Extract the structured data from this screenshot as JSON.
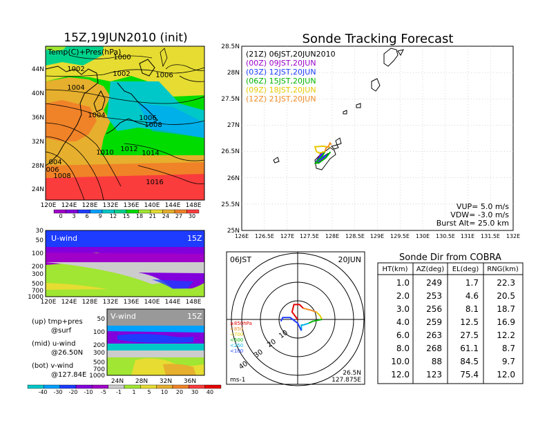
{
  "left_panel": {
    "title": "15Z,19JUN2010 (init)",
    "map": {
      "label": "Temp(C)+Pres(hPa)",
      "lat_ticks": [
        "44N",
        "40N",
        "36N",
        "32N",
        "28N",
        "24N"
      ],
      "lon_ticks": [
        "120E",
        "124E",
        "128E",
        "132E",
        "136E",
        "140E",
        "144E",
        "148E"
      ],
      "isobar_labels": [
        "1000",
        "1002",
        "1002",
        "1004",
        "1004",
        "1006",
        "1006",
        "1008",
        "1008",
        "1010",
        "1012",
        "1014",
        "1016",
        "004",
        "006",
        "1008"
      ],
      "colorbar_labels": [
        "0",
        "3",
        "6",
        "9",
        "12",
        "15",
        "18",
        "21",
        "24",
        "27",
        "30"
      ]
    },
    "u_wind": {
      "label": "U-wind",
      "time": "15Z",
      "pressure_ticks": [
        "30",
        "50",
        "100",
        "200",
        "300",
        "500",
        "700",
        "1000"
      ],
      "lon_ticks": [
        "120E",
        "124E",
        "128E",
        "132E",
        "136E",
        "140E",
        "144E",
        "148E"
      ]
    },
    "v_wind": {
      "label": "V-wind",
      "time": "15Z",
      "pressure_ticks": [
        "50",
        "100",
        "200",
        "300",
        "500",
        "700",
        "1000"
      ],
      "lat_ticks": [
        "24N",
        "28N",
        "32N",
        "36N"
      ]
    },
    "wind_colorbar_labels": [
      "-40",
      "-30",
      "-20",
      "-10",
      "-5",
      "-1",
      "1",
      "5",
      "10",
      "20",
      "30",
      "40"
    ],
    "notes": [
      {
        "head": "(up) tmp+pres",
        "sub": "@surf"
      },
      {
        "head": "(mid) u-wind",
        "sub": "@26.50N"
      },
      {
        "head": "(bot) v-wind",
        "sub": "@127.84E"
      }
    ]
  },
  "tracking": {
    "title": "Sonde Tracking Forecast",
    "lat_ticks": [
      "28.5N",
      "28N",
      "27.5N",
      "27N",
      "26.5N",
      "26N",
      "25.5N",
      "25N"
    ],
    "lon_ticks": [
      "126E",
      "126.5E",
      "127E",
      "127.5E",
      "128E",
      "128.5E",
      "129E",
      "129.5E",
      "130E",
      "130.5E",
      "131E",
      "131.5E",
      "132E"
    ],
    "legend": [
      {
        "text": "(21Z)  06JST,20JUN2010",
        "color": "#000000"
      },
      {
        "text": "(00Z)  09JST,20JUN",
        "color": "#9a00c8"
      },
      {
        "text": "(03Z)  12JST,20JUN",
        "color": "#1e3cff"
      },
      {
        "text": "(06Z)  15JST,20JUN",
        "color": "#00b400"
      },
      {
        "text": "(09Z)  18JST,20JUN",
        "color": "#e6c800"
      },
      {
        "text": "(12Z)  21JST,20JUN",
        "color": "#f08c28"
      }
    ],
    "params": {
      "vup": "VUP=  5.0  m/s",
      "vdw": "VDW=  -3.0  m/s",
      "burst": "Burst Alt=  25.0  km"
    }
  },
  "polar": {
    "time_label": "06JST",
    "date_label": "20JUN",
    "ring_labels": [
      "10",
      "20",
      "30",
      "40"
    ],
    "pressure_legend": [
      {
        "text": "≥850hPa",
        "color": "#e60000"
      },
      {
        "text": "<850",
        "color": "#f08c28"
      },
      {
        "text": "<700",
        "color": "#e6c800"
      },
      {
        "text": "<500",
        "color": "#00b400"
      },
      {
        "text": "<250",
        "color": "#00b4e6"
      },
      {
        "text": "<100",
        "color": "#1e3cff"
      }
    ],
    "unit": "ms-1",
    "lat": "26.5N",
    "lon": "127.875E"
  },
  "table": {
    "title": "Sonde Dir from COBRA",
    "headers": [
      "HT(km)",
      "AZ(deg)",
      "EL(deg)",
      "RNG(km)"
    ],
    "rows": [
      [
        "1.0",
        "249",
        "1.7",
        "22.3"
      ],
      [
        "2.0",
        "253",
        "4.6",
        "20.5"
      ],
      [
        "3.0",
        "256",
        "8.1",
        "18.7"
      ],
      [
        "4.0",
        "259",
        "12.5",
        "16.9"
      ],
      [
        "6.0",
        "263",
        "27.5",
        "12.2"
      ],
      [
        "8.0",
        "268",
        "61.1",
        "8.7"
      ],
      [
        "10.0",
        "88",
        "84.5",
        "9.7"
      ],
      [
        "12.0",
        "123",
        "75.4",
        "12.0"
      ]
    ]
  },
  "colors": {
    "temp_scale": [
      "#a000c8",
      "#8200dc",
      "#1e3cff",
      "#00a0ff",
      "#00c8c8",
      "#00d28c",
      "#00dc00",
      "#a0e632",
      "#e6dc32",
      "#e6af2d",
      "#f08228",
      "#fa3c3c"
    ],
    "wind_scale": [
      "#00c8c8",
      "#00a0ff",
      "#1e3cff",
      "#8200dc",
      "#a000c8",
      "#cccccc",
      "#a0e632",
      "#e6dc32",
      "#e6af2d",
      "#f08228",
      "#fa3c3c",
      "#e60000"
    ]
  },
  "chart_data": [
    {
      "type": "heatmap",
      "title": "15Z,19JUN2010 (init)",
      "label": "Temp(C)+Pres(hPa)",
      "x": {
        "label": "",
        "range": [
          120,
          150
        ],
        "unit": "E"
      },
      "y": {
        "label": "",
        "range": [
          22,
          47
        ],
        "unit": "N"
      },
      "color_levels": [
        0,
        3,
        6,
        9,
        12,
        15,
        18,
        21,
        24,
        27,
        30
      ],
      "isobar_levels": [
        1000,
        1002,
        1004,
        1006,
        1008,
        1010,
        1012,
        1014,
        1016
      ]
    },
    {
      "type": "heatmap",
      "label": "U-wind",
      "time": "15Z",
      "x": {
        "label": "",
        "range": [
          120,
          150
        ],
        "unit": "E"
      },
      "y": {
        "label": "",
        "range": [
          1000,
          30
        ],
        "scale": "log",
        "unit": "hPa"
      },
      "color_levels": [
        -40,
        -30,
        -20,
        -10,
        -5,
        -1,
        1,
        5,
        10,
        20,
        30,
        40
      ]
    },
    {
      "type": "heatmap",
      "label": "V-wind",
      "time": "15Z",
      "x": {
        "label": "",
        "range": [
          22,
          38
        ],
        "unit": "N"
      },
      "y": {
        "label": "",
        "range": [
          1000,
          50
        ],
        "scale": "log",
        "unit": "hPa"
      },
      "color_levels": [
        -40,
        -30,
        -20,
        -10,
        -5,
        -1,
        1,
        5,
        10,
        20,
        30,
        40
      ]
    },
    {
      "type": "line",
      "title": "Sonde Tracking Forecast",
      "x": {
        "label": "",
        "range": [
          126,
          132
        ],
        "unit": "E"
      },
      "y": {
        "label": "",
        "range": [
          25,
          28.5
        ],
        "unit": "N"
      },
      "grid": true,
      "legend_position": "top-left",
      "series": [
        {
          "name": "(21Z)  06JST,20JUN2010",
          "color": "#000000",
          "points": [
            [
              127.84,
              26.5
            ],
            [
              127.75,
              26.46
            ],
            [
              127.7,
              26.38
            ],
            [
              127.66,
              26.32
            ],
            [
              127.68,
              26.3
            ],
            [
              127.84,
              26.42
            ],
            [
              127.92,
              26.46
            ]
          ]
        },
        {
          "name": "(00Z)  09JST,20JUN",
          "color": "#9a00c8",
          "points": [
            [
              127.84,
              26.5
            ],
            [
              127.74,
              26.44
            ],
            [
              127.68,
              26.33
            ],
            [
              127.64,
              26.29
            ],
            [
              127.72,
              26.31
            ],
            [
              127.88,
              26.43
            ]
          ]
        },
        {
          "name": "(03Z)  12JST,20JUN",
          "color": "#1e3cff",
          "points": [
            [
              127.84,
              26.5
            ],
            [
              127.76,
              26.43
            ],
            [
              127.7,
              26.36
            ],
            [
              127.65,
              26.31
            ],
            [
              127.67,
              26.3
            ],
            [
              127.82,
              26.4
            ],
            [
              127.9,
              26.44
            ]
          ]
        },
        {
          "name": "(06Z)  15JST,20JUN",
          "color": "#00b400",
          "points": [
            [
              127.84,
              26.5
            ],
            [
              127.78,
              26.41
            ],
            [
              127.7,
              26.34
            ],
            [
              127.63,
              26.28
            ],
            [
              127.7,
              26.28
            ],
            [
              127.86,
              26.38
            ],
            [
              127.96,
              26.49
            ]
          ]
        },
        {
          "name": "(09Z)  18JST,20JUN",
          "color": "#e6c800",
          "points": [
            [
              127.84,
              26.5
            ],
            [
              127.72,
              26.47
            ],
            [
              127.65,
              26.5
            ],
            [
              127.62,
              26.59
            ],
            [
              127.8,
              26.6
            ],
            [
              127.95,
              26.58
            ]
          ]
        },
        {
          "name": "(12Z)  21JST,20JUN",
          "color": "#f08c28",
          "points": [
            [
              127.84,
              26.5
            ],
            [
              127.86,
              26.56
            ],
            [
              127.92,
              26.6
            ],
            [
              127.95,
              26.66
            ],
            [
              127.98,
              26.63
            ]
          ]
        }
      ]
    },
    {
      "type": "line",
      "title": "Sonde Dir from COBRA",
      "polar": true,
      "r_unit": "ms-1",
      "r_rings": [
        10,
        20,
        30,
        40
      ],
      "segments": [
        {
          "pressure": "≥850hPa",
          "color": "#e60000",
          "points": [
            [
              0,
              0
            ],
            [
              -3,
              4
            ],
            [
              -2,
              8
            ],
            [
              1,
              8
            ],
            [
              3,
              6
            ]
          ]
        },
        {
          "pressure": "<850",
          "color": "#f08c28",
          "points": [
            [
              3,
              6
            ],
            [
              7,
              5
            ],
            [
              10,
              4
            ]
          ]
        },
        {
          "pressure": "<700",
          "color": "#e6c800",
          "points": [
            [
              10,
              4
            ],
            [
              12,
              2
            ],
            [
              13,
              0
            ]
          ]
        },
        {
          "pressure": "<500",
          "color": "#00b400",
          "points": [
            [
              13,
              0
            ],
            [
              8,
              -1
            ],
            [
              6,
              -2
            ]
          ]
        },
        {
          "pressure": "<250",
          "color": "#00b4e6",
          "points": [
            [
              6,
              -2
            ],
            [
              3,
              -3
            ],
            [
              2,
              -3
            ],
            [
              2,
              -6
            ]
          ]
        },
        {
          "pressure": "<100",
          "color": "#1e3cff",
          "points": [
            [
              2,
              -6
            ],
            [
              0,
              -2
            ],
            [
              -4,
              1
            ],
            [
              -8,
              1
            ],
            [
              -9,
              -1
            ]
          ]
        }
      ]
    },
    {
      "type": "table",
      "title": "Sonde Dir from COBRA",
      "columns": [
        "HT(km)",
        "AZ(deg)",
        "EL(deg)",
        "RNG(km)"
      ],
      "rows": [
        [
          1.0,
          249,
          1.7,
          22.3
        ],
        [
          2.0,
          253,
          4.6,
          20.5
        ],
        [
          3.0,
          256,
          8.1,
          18.7
        ],
        [
          4.0,
          259,
          12.5,
          16.9
        ],
        [
          6.0,
          263,
          27.5,
          12.2
        ],
        [
          8.0,
          268,
          61.1,
          8.7
        ],
        [
          10.0,
          88,
          84.5,
          9.7
        ],
        [
          12.0,
          123,
          75.4,
          12.0
        ]
      ]
    }
  ]
}
